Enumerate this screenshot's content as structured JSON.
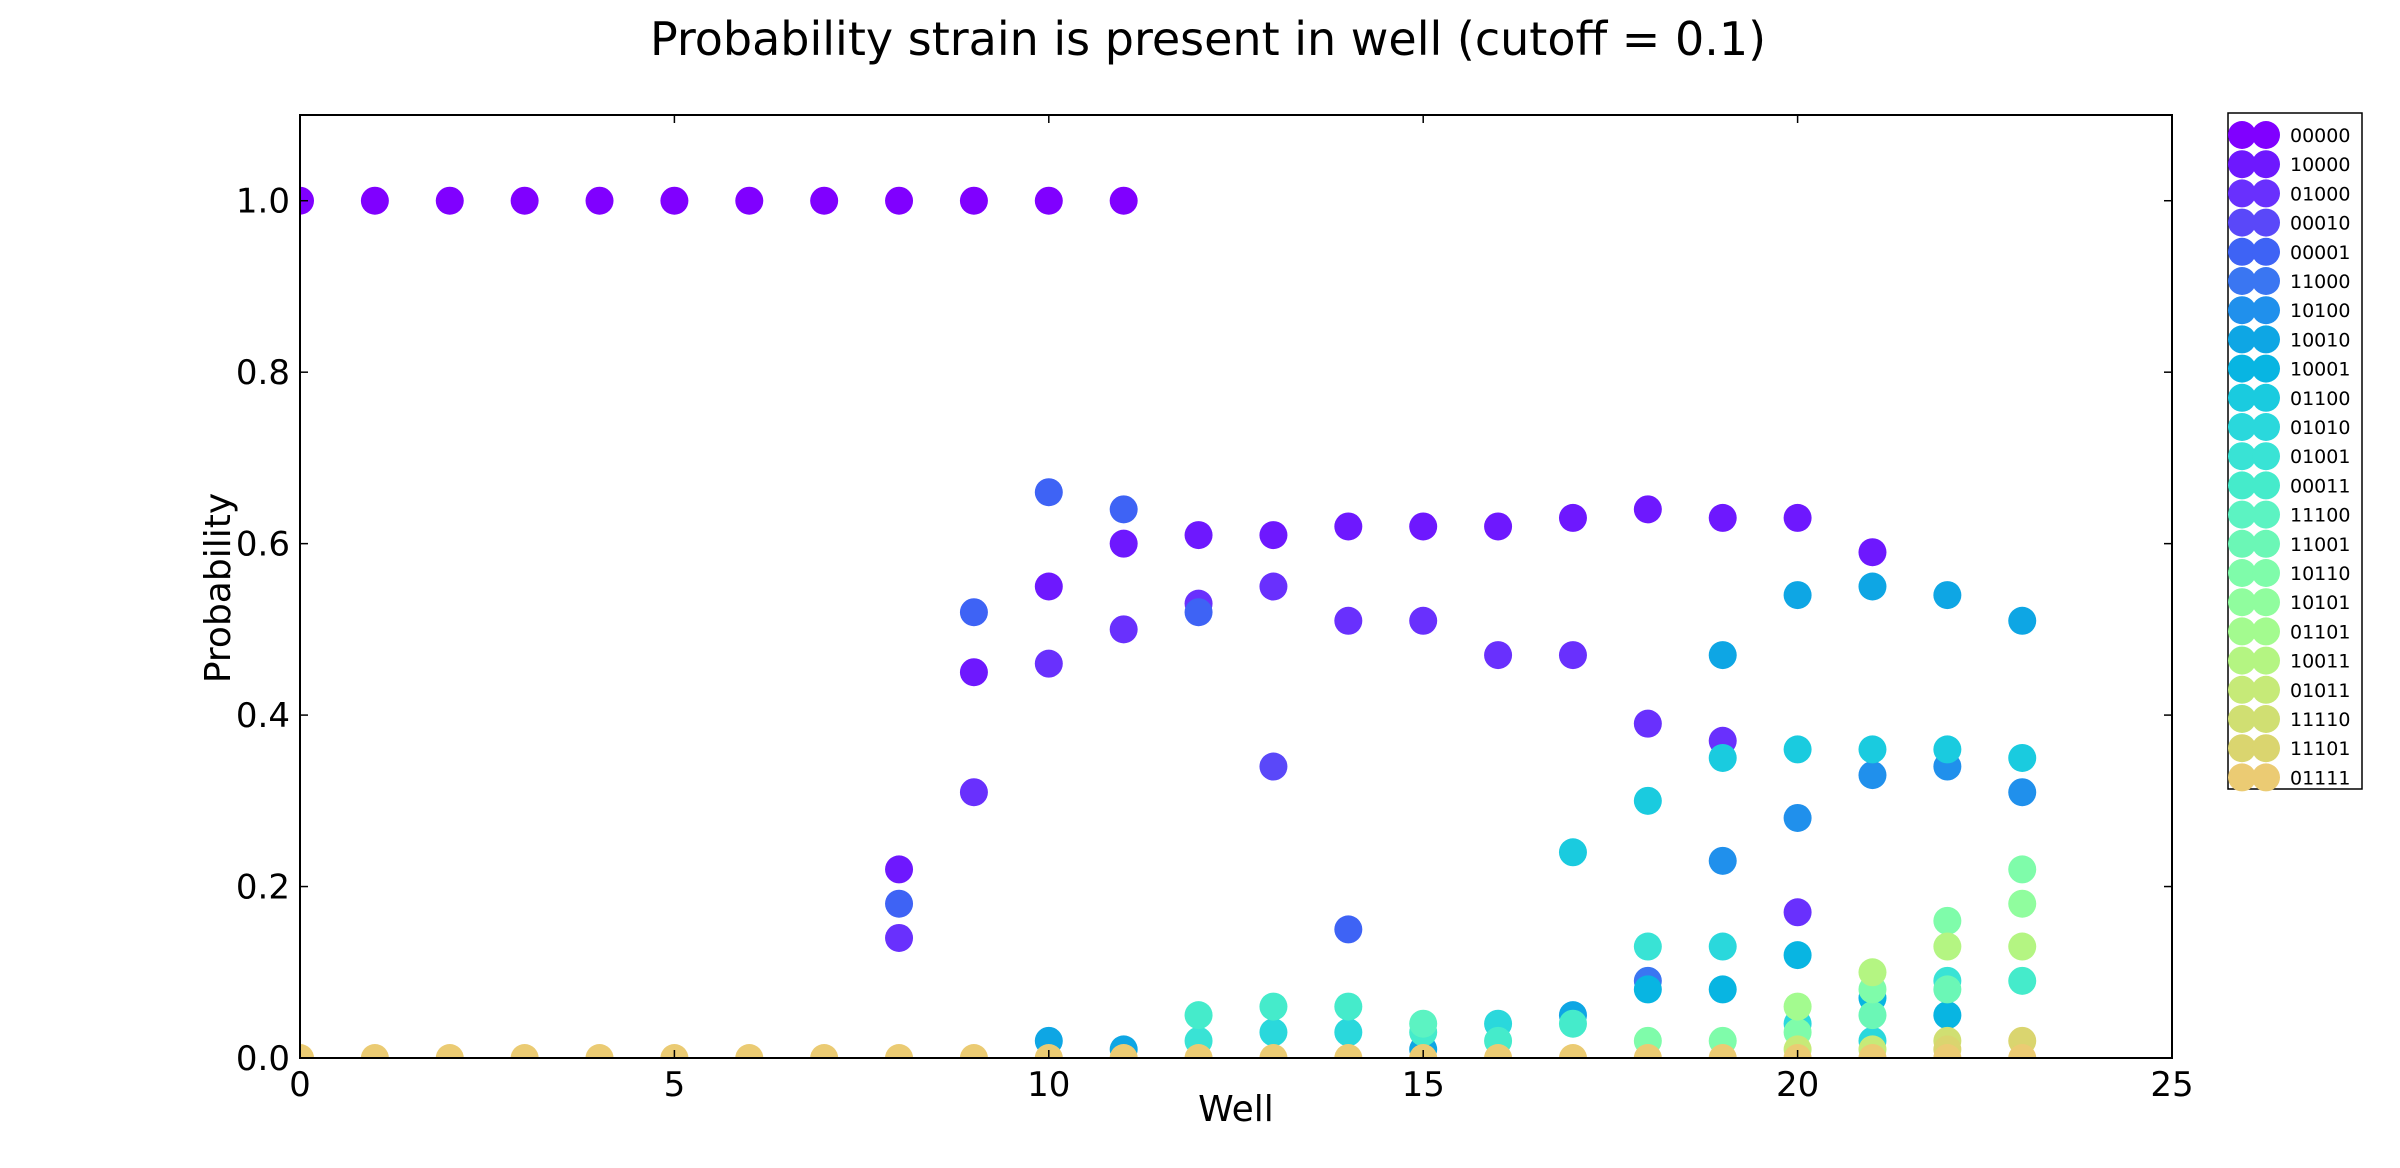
{
  "chart_data": {
    "type": "scatter",
    "title": "Probability strain is present in well (cutoff = 0.1)",
    "xlabel": "Well",
    "ylabel": "Probability",
    "xlim": [
      0,
      25
    ],
    "ylim": [
      0,
      1.1
    ],
    "xticks": [
      0,
      5,
      10,
      15,
      20,
      25
    ],
    "xtick_labels": [
      "0",
      "5",
      "10",
      "15",
      "20",
      "25"
    ],
    "yticks": [
      0.0,
      0.2,
      0.4,
      0.6,
      0.8,
      1.0
    ],
    "ytick_labels": [
      "0.0",
      "0.2",
      "0.4",
      "0.6",
      "0.8",
      "1.0"
    ],
    "grid": false,
    "legend_position": "outside-right",
    "series": [
      {
        "name": "00000",
        "color": "#8000ff",
        "points": [
          [
            0,
            1.0
          ],
          [
            1,
            1.0
          ],
          [
            2,
            1.0
          ],
          [
            3,
            1.0
          ],
          [
            4,
            1.0
          ],
          [
            5,
            1.0
          ],
          [
            6,
            1.0
          ],
          [
            7,
            1.0
          ],
          [
            8,
            1.0
          ],
          [
            9,
            1.0
          ],
          [
            10,
            1.0
          ],
          [
            11,
            1.0
          ]
        ]
      },
      {
        "name": "10000",
        "color": "#6e18fe",
        "points": [
          [
            8,
            0.22
          ],
          [
            9,
            0.45
          ],
          [
            10,
            0.55
          ],
          [
            11,
            0.6
          ],
          [
            12,
            0.61
          ],
          [
            13,
            0.61
          ],
          [
            14,
            0.62
          ],
          [
            15,
            0.62
          ],
          [
            16,
            0.62
          ],
          [
            17,
            0.63
          ],
          [
            18,
            0.64
          ],
          [
            19,
            0.63
          ],
          [
            20,
            0.63
          ],
          [
            21,
            0.59
          ]
        ]
      },
      {
        "name": "01000",
        "color": "#6930fd",
        "points": [
          [
            8,
            0.14
          ],
          [
            9,
            0.31
          ],
          [
            10,
            0.46
          ],
          [
            11,
            0.5
          ],
          [
            12,
            0.53
          ],
          [
            13,
            0.55
          ],
          [
            14,
            0.51
          ],
          [
            15,
            0.51
          ],
          [
            16,
            0.47
          ],
          [
            17,
            0.47
          ],
          [
            18,
            0.39
          ],
          [
            19,
            0.37
          ],
          [
            20,
            0.17
          ]
        ]
      },
      {
        "name": "00010",
        "color": "#5a48f9",
        "points": [
          [
            13,
            0.34
          ]
        ]
      },
      {
        "name": "00001",
        "color": "#3e63f5",
        "points": [
          [
            8,
            0.18
          ],
          [
            9,
            0.52
          ],
          [
            10,
            0.66
          ],
          [
            11,
            0.64
          ],
          [
            12,
            0.52
          ],
          [
            14,
            0.15
          ]
        ]
      },
      {
        "name": "11000",
        "color": "#3a76f2",
        "points": [
          [
            18,
            0.09
          ]
        ]
      },
      {
        "name": "10100",
        "color": "#2090ec",
        "points": [
          [
            19,
            0.23
          ],
          [
            20,
            0.28
          ],
          [
            21,
            0.33
          ],
          [
            22,
            0.34
          ],
          [
            23,
            0.31
          ]
        ]
      },
      {
        "name": "10010",
        "color": "#0ea6e4",
        "points": [
          [
            10,
            0.02
          ],
          [
            11,
            0.01
          ],
          [
            15,
            0.01
          ],
          [
            17,
            0.05
          ],
          [
            19,
            0.47
          ],
          [
            20,
            0.54
          ],
          [
            21,
            0.55
          ],
          [
            22,
            0.54
          ],
          [
            23,
            0.51
          ]
        ]
      },
      {
        "name": "10001",
        "color": "#08b5e2",
        "points": [
          [
            18,
            0.08
          ],
          [
            19,
            0.08
          ],
          [
            20,
            0.12
          ],
          [
            21,
            0.07
          ],
          [
            22,
            0.05
          ]
        ]
      },
      {
        "name": "01100",
        "color": "#1acbdf",
        "points": [
          [
            17,
            0.24
          ],
          [
            18,
            0.3
          ],
          [
            19,
            0.35
          ],
          [
            20,
            0.36
          ],
          [
            21,
            0.36
          ],
          [
            22,
            0.36
          ],
          [
            23,
            0.35
          ]
        ]
      },
      {
        "name": "01010",
        "color": "#2ad8dc",
        "points": [
          [
            13,
            0.03
          ],
          [
            14,
            0.03
          ],
          [
            16,
            0.04
          ],
          [
            19,
            0.13
          ],
          [
            20,
            0.04
          ],
          [
            21,
            0.02
          ]
        ]
      },
      {
        "name": "01001",
        "color": "#39e3d5",
        "points": [
          [
            12,
            0.02
          ],
          [
            18,
            0.13
          ],
          [
            22,
            0.09
          ]
        ]
      },
      {
        "name": "00011",
        "color": "#45ebcb",
        "points": [
          [
            12,
            0.05
          ],
          [
            13,
            0.06
          ],
          [
            14,
            0.06
          ],
          [
            15,
            0.03
          ],
          [
            16,
            0.02
          ],
          [
            17,
            0.04
          ],
          [
            23,
            0.09
          ]
        ]
      },
      {
        "name": "11100",
        "color": "#5cf3c2",
        "points": [
          [
            15,
            0.04
          ]
        ]
      },
      {
        "name": "11001",
        "color": "#6bf7b6",
        "points": [
          [
            21,
            0.05
          ],
          [
            22,
            0.08
          ]
        ]
      },
      {
        "name": "10110",
        "color": "#7ffcaa",
        "points": [
          [
            18,
            0.02
          ],
          [
            19,
            0.02
          ],
          [
            20,
            0.03
          ],
          [
            21,
            0.08
          ],
          [
            22,
            0.16
          ],
          [
            23,
            0.22
          ]
        ]
      },
      {
        "name": "10101",
        "color": "#90fd9e",
        "points": [
          [
            23,
            0.18
          ]
        ]
      },
      {
        "name": "01101",
        "color": "#a3fb8f",
        "points": [
          [
            20,
            0.06
          ]
        ]
      },
      {
        "name": "10011",
        "color": "#b4f582",
        "points": [
          [
            21,
            0.1
          ],
          [
            22,
            0.13
          ],
          [
            23,
            0.13
          ]
        ]
      },
      {
        "name": "01011",
        "color": "#c6ea78",
        "points": [
          [
            20,
            0.01
          ],
          [
            21,
            0.01
          ]
        ]
      },
      {
        "name": "11110",
        "color": "#d0df72",
        "points": [
          [
            22,
            0.02
          ]
        ]
      },
      {
        "name": "11101",
        "color": "#dad56f",
        "points": [
          [
            22,
            0.01
          ],
          [
            23,
            0.02
          ]
        ]
      },
      {
        "name": "01111",
        "color": "#ebcb73",
        "points": [
          [
            0,
            0.0
          ],
          [
            1,
            0.0
          ],
          [
            2,
            0.0
          ],
          [
            3,
            0.0
          ],
          [
            4,
            0.0
          ],
          [
            5,
            0.0
          ],
          [
            6,
            0.0
          ],
          [
            7,
            0.0
          ],
          [
            8,
            0.0
          ],
          [
            9,
            0.0
          ],
          [
            10,
            0.0
          ],
          [
            11,
            0.0
          ],
          [
            12,
            0.0
          ],
          [
            13,
            0.0
          ],
          [
            14,
            0.0
          ],
          [
            15,
            0.0
          ],
          [
            16,
            0.0
          ],
          [
            17,
            0.0
          ],
          [
            18,
            0.0
          ],
          [
            19,
            0.0
          ],
          [
            20,
            0.0
          ],
          [
            21,
            0.0
          ],
          [
            22,
            0.0
          ],
          [
            23,
            0.0
          ]
        ]
      }
    ]
  }
}
